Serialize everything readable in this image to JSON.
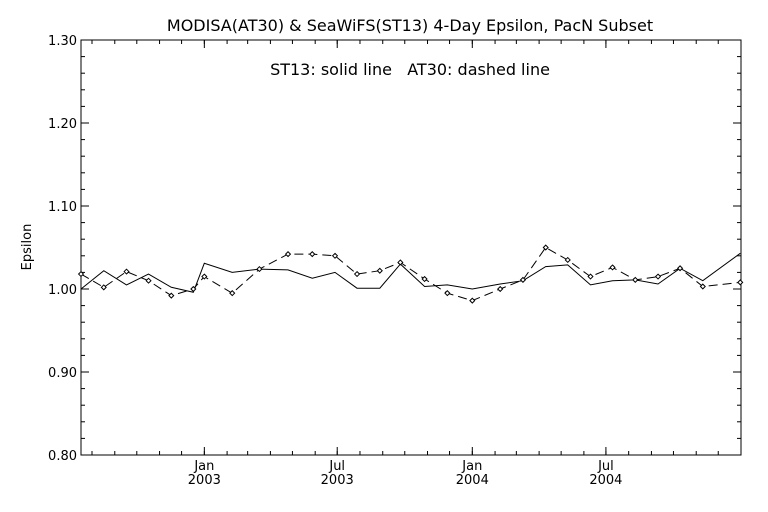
{
  "chart_data": {
    "type": "line",
    "title": "MODISA(AT30) & SeaWiFS(ST13) 4-Day Epsilon, PacN Subset",
    "annotation": "ST13: solid line   AT30: dashed line",
    "xlabel": "",
    "ylabel": "Epsilon",
    "ylim": [
      0.8,
      1.3
    ],
    "yticks": [
      0.8,
      0.9,
      1.0,
      1.1,
      1.2,
      1.3
    ],
    "ytick_labels": [
      "0.80",
      "0.90",
      "1.00",
      "1.10",
      "1.20",
      "1.30"
    ],
    "xlim": [
      "2002-07-17",
      "2004-12-31"
    ],
    "xticks": [
      {
        "date": "2003-01-01",
        "line1": "Jan",
        "line2": "2003"
      },
      {
        "date": "2003-07-01",
        "line1": "Jul",
        "line2": "2003"
      },
      {
        "date": "2004-01-01",
        "line1": "Jan",
        "line2": "2004"
      },
      {
        "date": "2004-07-01",
        "line1": "Jul",
        "line2": "2004"
      }
    ],
    "grid": false,
    "legend": "none",
    "series": [
      {
        "name": "ST13",
        "style": "solid",
        "marker": "none",
        "color": "#000000",
        "x": [
          "2002-07-17",
          "2002-08-17",
          "2002-09-17",
          "2002-10-17",
          "2002-11-17",
          "2002-12-17",
          "2003-01-01",
          "2003-02-08",
          "2003-03-17",
          "2003-04-25",
          "2003-05-28",
          "2003-06-28",
          "2003-07-28",
          "2003-08-28",
          "2003-09-25",
          "2003-10-28",
          "2003-11-28",
          "2004-01-01",
          "2004-02-08",
          "2004-03-10",
          "2004-04-10",
          "2004-05-10",
          "2004-06-10",
          "2004-07-10",
          "2004-08-10",
          "2004-09-10",
          "2004-10-10",
          "2004-11-10",
          "2004-12-31"
        ],
        "y": [
          1.0,
          1.022,
          1.005,
          1.018,
          1.002,
          0.996,
          1.031,
          1.02,
          1.024,
          1.023,
          1.013,
          1.02,
          1.001,
          1.001,
          1.03,
          1.003,
          1.005,
          1.0,
          1.006,
          1.01,
          1.027,
          1.029,
          1.005,
          1.01,
          1.011,
          1.006,
          1.025,
          1.01,
          1.043
        ]
      },
      {
        "name": "AT30",
        "style": "dashed",
        "marker": "diamond",
        "color": "#000000",
        "x": [
          "2002-07-17",
          "2002-08-17",
          "2002-09-17",
          "2002-10-17",
          "2002-11-17",
          "2002-12-17",
          "2003-01-01",
          "2003-02-08",
          "2003-03-17",
          "2003-04-25",
          "2003-05-28",
          "2003-06-28",
          "2003-07-28",
          "2003-08-28",
          "2003-09-25",
          "2003-10-28",
          "2003-11-28",
          "2004-01-01",
          "2004-02-08",
          "2004-03-10",
          "2004-04-10",
          "2004-05-10",
          "2004-06-10",
          "2004-07-10",
          "2004-08-10",
          "2004-09-10",
          "2004-10-10",
          "2004-11-10",
          "2004-12-31"
        ],
        "y": [
          1.018,
          1.002,
          1.021,
          1.01,
          0.992,
          1.0,
          1.015,
          0.995,
          1.024,
          1.042,
          1.042,
          1.04,
          1.018,
          1.022,
          1.032,
          1.012,
          0.995,
          0.986,
          1.0,
          1.011,
          1.05,
          1.035,
          1.015,
          1.026,
          1.011,
          1.015,
          1.025,
          1.003,
          1.008
        ]
      }
    ]
  }
}
